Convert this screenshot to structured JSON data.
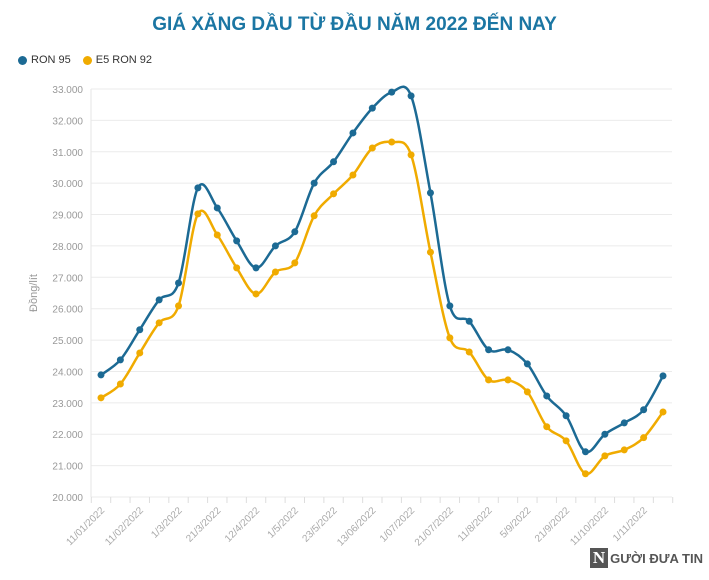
{
  "chart_data": {
    "type": "line",
    "title": "GIÁ XĂNG DẦU TỪ ĐẦU NĂM 2022 ĐẾN NAY",
    "xlabel": "",
    "ylabel": "Đồng/lít",
    "ylim": [
      20000,
      33000
    ],
    "yticks": [
      20000,
      21000,
      22000,
      23000,
      24000,
      25000,
      26000,
      27000,
      28000,
      29000,
      30000,
      31000,
      32000,
      33000
    ],
    "ytick_labels": [
      "20.000",
      "21.000",
      "22.000",
      "23.000",
      "24.000",
      "25.000",
      "26.000",
      "27.000",
      "28.000",
      "29.000",
      "30.000",
      "31.000",
      "32.000",
      "33.000"
    ],
    "x_labels": [
      "11/01/2022",
      "11/02/2022",
      "1/3/2022",
      "21/3/2022",
      "12/4/2022",
      "1/5/2022",
      "23/5/2022",
      "13/06/2022",
      "1/07/2022",
      "21/07/2022",
      "11/8/2022",
      "5/9/2022",
      "21/9/2022",
      "11/10/2022",
      "1/11/2022"
    ],
    "grid": true,
    "legend_position": "top-left",
    "series": [
      {
        "name": "RON 95",
        "color": "#1c6a94",
        "values": [
          23890,
          24370,
          25330,
          26280,
          26820,
          29850,
          29210,
          28160,
          27300,
          28000,
          28450,
          30000,
          30680,
          31600,
          32390,
          32900,
          32780,
          29690,
          26090,
          25600,
          24690,
          24690,
          24240,
          23220,
          22590,
          21440,
          22000,
          22360,
          22780,
          23860
        ]
      },
      {
        "name": "E5 RON 92",
        "color": "#f0ab00",
        "values": [
          23160,
          23600,
          24590,
          25550,
          26090,
          29020,
          28350,
          27300,
          26470,
          27170,
          27460,
          28960,
          29660,
          30260,
          31120,
          31310,
          30900,
          27800,
          25070,
          24620,
          23730,
          23730,
          23350,
          22240,
          21790,
          20740,
          21310,
          21500,
          21890,
          22710
        ]
      }
    ]
  },
  "watermark": "NGƯỜI ĐƯA TIN"
}
